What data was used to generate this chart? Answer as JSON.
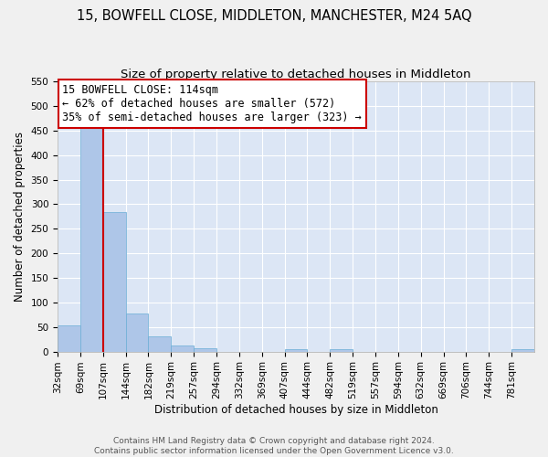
{
  "title": "15, BOWFELL CLOSE, MIDDLETON, MANCHESTER, M24 5AQ",
  "subtitle": "Size of property relative to detached houses in Middleton",
  "xlabel": "Distribution of detached houses by size in Middleton",
  "ylabel": "Number of detached properties",
  "footer_line1": "Contains HM Land Registry data © Crown copyright and database right 2024.",
  "footer_line2": "Contains public sector information licensed under the Open Government Licence v3.0.",
  "bin_labels": [
    "32sqm",
    "69sqm",
    "107sqm",
    "144sqm",
    "182sqm",
    "219sqm",
    "257sqm",
    "294sqm",
    "332sqm",
    "369sqm",
    "407sqm",
    "444sqm",
    "482sqm",
    "519sqm",
    "557sqm",
    "594sqm",
    "632sqm",
    "669sqm",
    "706sqm",
    "744sqm",
    "781sqm"
  ],
  "bar_heights": [
    53,
    457,
    285,
    78,
    31,
    12,
    7,
    0,
    0,
    0,
    5,
    0,
    4,
    0,
    0,
    0,
    0,
    0,
    0,
    0,
    4
  ],
  "ylim": [
    0,
    550
  ],
  "yticks": [
    0,
    50,
    100,
    150,
    200,
    250,
    300,
    350,
    400,
    450,
    500,
    550
  ],
  "bar_color": "#aec6e8",
  "bar_edge_color": "#6aaed6",
  "bg_color": "#dce6f5",
  "grid_color": "#ffffff",
  "fig_bg_color": "#f0f0f0",
  "vline_x": 2.0,
  "vline_color": "#cc0000",
  "annotation_title": "15 BOWFELL CLOSE: 114sqm",
  "annotation_line1": "← 62% of detached houses are smaller (572)",
  "annotation_line2": "35% of semi-detached houses are larger (323) →",
  "annotation_box_color": "#ffffff",
  "annotation_box_edge_color": "#cc0000",
  "title_fontsize": 10.5,
  "subtitle_fontsize": 9.5,
  "axis_label_fontsize": 8.5,
  "tick_fontsize": 7.5,
  "annotation_fontsize": 8.5,
  "footer_fontsize": 6.5
}
